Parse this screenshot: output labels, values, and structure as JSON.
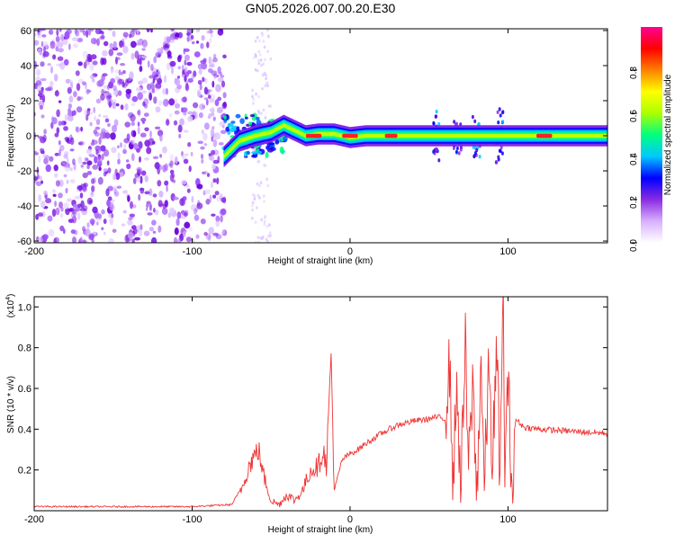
{
  "page_title": "GN05.2026.007.00.20.E30",
  "chart_data": [
    {
      "type": "heatmap",
      "title": "GN05.2026.007.00.20.E30",
      "xlabel": "Height of straight line (km)",
      "ylabel": "Frequency (Hz)",
      "xlim": [
        -200,
        163
      ],
      "ylim": [
        -61,
        61
      ],
      "xticks": [
        -200,
        -100,
        0,
        100
      ],
      "yticks": [
        60,
        40,
        20,
        0,
        -20,
        -40,
        -60
      ],
      "colorbar": {
        "label": "Normalized spectral amplitude",
        "range": [
          0,
          1
        ],
        "ticks": [
          "0.0",
          "0.2",
          "0.4",
          "0.6",
          "0.8"
        ],
        "colors": [
          "#ffffff",
          "#d8b0ff",
          "#8a2be2",
          "#0000ff",
          "#00c8ff",
          "#00ff80",
          "#aaff00",
          "#ffff00",
          "#ff8000",
          "#ff0000",
          "#ff0090"
        ]
      },
      "ridge": {
        "x": [
          -80,
          -70,
          -60,
          -50,
          -42,
          -35,
          -28,
          -20,
          -10,
          0,
          10,
          20,
          40,
          60,
          80,
          100,
          120,
          140,
          163
        ],
        "freq": [
          -12,
          -3,
          0,
          2,
          6,
          3,
          0,
          1,
          1,
          -1,
          0,
          0,
          0,
          0,
          0,
          0,
          0,
          0,
          0
        ]
      }
    },
    {
      "type": "line",
      "xlabel": "Height of straight line (km)",
      "ylabel": "SNR (10 * v/v)",
      "scale_label": "(x10",
      "scale_exp": "4",
      "scale_close": ")",
      "xlim": [
        -200,
        163
      ],
      "ylim": [
        0.0,
        1.05
      ],
      "xticks": [
        -200,
        -100,
        0,
        100
      ],
      "yticks": [
        "0.2",
        "0.4",
        "0.6",
        "0.8",
        "1.0"
      ],
      "series": [
        {
          "name": "SNR",
          "color": "#ee3333",
          "x": [
            -200,
            -150,
            -100,
            -75,
            -68,
            -65,
            -62,
            -58,
            -55,
            -50,
            -45,
            -40,
            -35,
            -30,
            -25,
            -20,
            -17,
            -15,
            -12,
            -10,
            -5,
            0,
            5,
            10,
            20,
            30,
            40,
            50,
            55,
            60,
            63,
            65,
            68,
            70,
            73,
            75,
            78,
            80,
            83,
            85,
            88,
            90,
            93,
            95,
            97,
            98,
            100,
            103,
            105,
            110,
            120,
            140,
            163
          ],
          "y": [
            0.02,
            0.02,
            0.02,
            0.03,
            0.12,
            0.2,
            0.25,
            0.3,
            0.18,
            0.05,
            0.03,
            0.08,
            0.05,
            0.1,
            0.2,
            0.22,
            0.3,
            0.22,
            0.77,
            0.1,
            0.25,
            0.28,
            0.3,
            0.33,
            0.38,
            0.42,
            0.44,
            0.45,
            0.46,
            0.45,
            0.72,
            0.15,
            0.62,
            0.08,
            0.8,
            0.2,
            0.65,
            0.05,
            0.75,
            0.1,
            0.72,
            0.25,
            0.76,
            0.15,
            1.05,
            0.2,
            0.62,
            0.05,
            0.45,
            0.41,
            0.4,
            0.39,
            0.38
          ]
        }
      ]
    }
  ]
}
